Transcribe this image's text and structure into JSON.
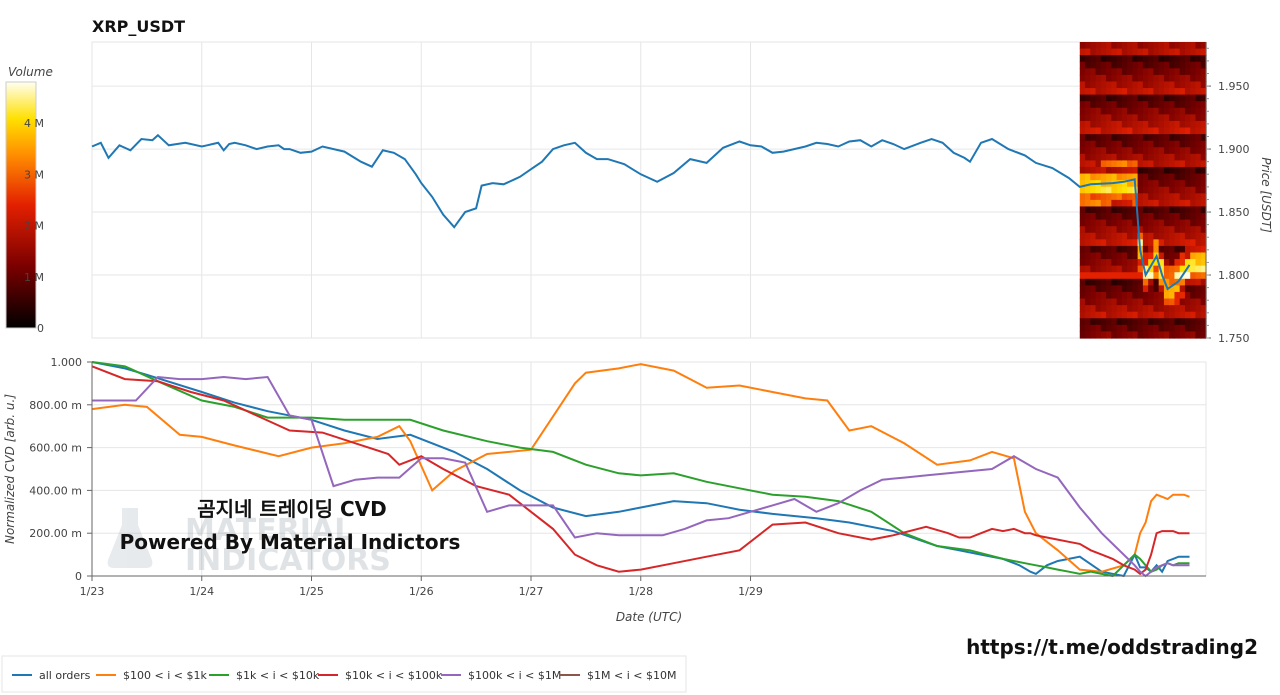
{
  "chart_data": [
    {
      "type": "line",
      "title": "XRP_USDT",
      "ylabel": "Price [USDT]",
      "ylim": [
        1.75,
        1.985
      ],
      "y_ticks": [
        "1.750",
        "1.800",
        "1.850",
        "1.900",
        "1.950"
      ],
      "heatmap_colorbar": {
        "label": "Volume",
        "ticks": [
          "0",
          "1 M",
          "2 M",
          "3 M",
          "4 M"
        ],
        "range": [
          0,
          4800000
        ]
      },
      "series": [
        {
          "color": "#1f77b4",
          "x": [
            0,
            0.08,
            0.15,
            0.25,
            0.35,
            0.45,
            0.55,
            0.6,
            0.7,
            0.85,
            1.0,
            1.05,
            1.1,
            1.15,
            1.2,
            1.25,
            1.3,
            1.4,
            1.5,
            1.6,
            1.7,
            1.75,
            1.8,
            1.9,
            2.0,
            2.1,
            2.3,
            2.45,
            2.55,
            2.65,
            2.75,
            2.85,
            2.95,
            3.0,
            3.1,
            3.2,
            3.3,
            3.4,
            3.5,
            3.55,
            3.65,
            3.75,
            3.85,
            3.9,
            4.0,
            4.1,
            4.2,
            4.3,
            4.4,
            4.5,
            4.6,
            4.7,
            4.85,
            5.0,
            5.15,
            5.3,
            5.45,
            5.6,
            5.75,
            5.9,
            6.0,
            6.1,
            6.2,
            6.3,
            6.5,
            6.6,
            6.7,
            6.8,
            6.9,
            7.0,
            7.1,
            7.2,
            7.3,
            7.4,
            7.55,
            7.65,
            7.75,
            7.85,
            7.95,
            8.0,
            8.1,
            8.2,
            8.35,
            8.5,
            8.6,
            8.75,
            8.9,
            9.0,
            9.1,
            9.3,
            9.4,
            9.5,
            9.55,
            9.6,
            9.7,
            9.75,
            9.8,
            9.9,
            10.0
          ],
          "y": [
            1.902,
            1.905,
            1.893,
            1.903,
            1.899,
            1.908,
            1.907,
            1.911,
            1.903,
            1.905,
            1.902,
            1.903,
            1.904,
            1.905,
            1.899,
            1.904,
            1.905,
            1.903,
            1.9,
            1.902,
            1.903,
            1.9,
            1.9,
            1.897,
            1.898,
            1.902,
            1.898,
            1.89,
            1.886,
            1.899,
            1.897,
            1.892,
            1.88,
            1.873,
            1.862,
            1.848,
            1.838,
            1.85,
            1.853,
            1.871,
            1.873,
            1.872,
            1.876,
            1.878,
            1.884,
            1.89,
            1.9,
            1.903,
            1.905,
            1.897,
            1.892,
            1.892,
            1.888,
            1.88,
            1.874,
            1.881,
            1.892,
            1.889,
            1.901,
            1.906,
            1.903,
            1.902,
            1.897,
            1.898,
            1.902,
            1.905,
            1.904,
            1.902,
            1.906,
            1.907,
            1.902,
            1.907,
            1.904,
            1.9,
            1.905,
            1.908,
            1.905,
            1.897,
            1.893,
            1.89,
            1.905,
            1.908,
            1.9,
            1.895,
            1.889,
            1.885,
            1.877,
            1.87,
            1.872,
            1.873,
            1.874,
            1.876,
            1.82,
            1.8,
            1.815,
            1.8,
            1.789,
            1.795,
            1.808
          ]
        }
      ]
    },
    {
      "type": "line",
      "xlabel": "Date (UTC)",
      "ylabel": "Normalized CVD [arb. u.]",
      "ylim": [
        0,
        1.0
      ],
      "x_ticks": [
        "1/23",
        "1/24",
        "1/25",
        "1/26",
        "1/27",
        "1/28",
        "1/29"
      ],
      "y_ticks": [
        "0",
        "200.00 m",
        "400.00 m",
        "600.00 m",
        "800.00 m",
        "1.000"
      ],
      "legend_position": "bottom",
      "series": [
        {
          "name": "all orders",
          "color": "#1f77b4",
          "x": [
            0,
            0.3,
            0.5,
            1.0,
            1.3,
            1.6,
            2.0,
            2.3,
            2.6,
            2.9,
            3.3,
            3.6,
            3.9,
            4.2,
            4.5,
            4.8,
            5.0,
            5.3,
            5.6,
            5.9,
            6.2,
            6.6,
            6.9,
            7.3,
            7.7,
            7.9,
            8.1,
            8.3,
            8.45,
            8.55,
            8.6,
            8.7,
            8.8,
            8.9,
            9.0,
            9.2,
            9.4,
            9.5,
            9.55,
            9.6,
            9.65,
            9.7,
            9.75,
            9.8,
            9.85,
            9.9,
            10.0
          ],
          "y": [
            1.0,
            0.97,
            0.94,
            0.86,
            0.81,
            0.77,
            0.73,
            0.68,
            0.64,
            0.66,
            0.58,
            0.5,
            0.4,
            0.32,
            0.28,
            0.3,
            0.32,
            0.35,
            0.34,
            0.31,
            0.29,
            0.27,
            0.25,
            0.21,
            0.14,
            0.12,
            0.1,
            0.08,
            0.05,
            0.02,
            0.01,
            0.05,
            0.07,
            0.08,
            0.09,
            0.02,
            0.0,
            0.1,
            0.04,
            0.04,
            0.02,
            0.05,
            0.02,
            0.07,
            0.08,
            0.09,
            0.09
          ]
        },
        {
          "name": "$100 < i < $1k",
          "color": "#ff7f0e",
          "x": [
            0,
            0.3,
            0.5,
            0.8,
            1.0,
            1.3,
            1.7,
            2.0,
            2.3,
            2.6,
            2.8,
            2.9,
            3.1,
            3.3,
            3.6,
            4.0,
            4.4,
            4.5,
            4.8,
            5.0,
            5.3,
            5.6,
            5.9,
            6.2,
            6.5,
            6.7,
            6.9,
            7.1,
            7.4,
            7.7,
            8.0,
            8.2,
            8.4,
            8.5,
            8.6,
            8.8,
            9.0,
            9.2,
            9.4,
            9.5,
            9.55,
            9.6,
            9.65,
            9.7,
            9.75,
            9.8,
            9.85,
            9.9,
            9.95,
            10.0
          ],
          "y": [
            0.78,
            0.8,
            0.79,
            0.66,
            0.65,
            0.61,
            0.56,
            0.6,
            0.62,
            0.65,
            0.7,
            0.63,
            0.4,
            0.49,
            0.57,
            0.59,
            0.9,
            0.95,
            0.97,
            0.99,
            0.96,
            0.88,
            0.89,
            0.86,
            0.83,
            0.82,
            0.68,
            0.7,
            0.62,
            0.52,
            0.54,
            0.58,
            0.55,
            0.3,
            0.2,
            0.12,
            0.03,
            0.02,
            0.05,
            0.1,
            0.2,
            0.25,
            0.35,
            0.38,
            0.37,
            0.36,
            0.38,
            0.38,
            0.38,
            0.37
          ]
        },
        {
          "name": "$1k < i < $10k",
          "color": "#2ca02c",
          "x": [
            0,
            0.3,
            0.6,
            1.0,
            1.3,
            1.6,
            2.0,
            2.3,
            2.6,
            2.9,
            3.2,
            3.6,
            3.9,
            4.2,
            4.5,
            4.8,
            5.0,
            5.3,
            5.6,
            5.9,
            6.2,
            6.5,
            6.8,
            7.1,
            7.4,
            7.7,
            8.0,
            8.3,
            8.5,
            8.6,
            8.7,
            8.8,
            8.9,
            9.0,
            9.1,
            9.2,
            9.3,
            9.4,
            9.5,
            9.55,
            9.6,
            9.65,
            9.7,
            9.75,
            9.8,
            9.85,
            9.9,
            10.0
          ],
          "y": [
            1.0,
            0.98,
            0.91,
            0.82,
            0.79,
            0.74,
            0.74,
            0.73,
            0.73,
            0.73,
            0.68,
            0.63,
            0.6,
            0.58,
            0.52,
            0.48,
            0.47,
            0.48,
            0.44,
            0.41,
            0.38,
            0.37,
            0.35,
            0.3,
            0.2,
            0.14,
            0.12,
            0.08,
            0.06,
            0.05,
            0.04,
            0.03,
            0.02,
            0.01,
            0.02,
            0.01,
            0.0,
            0.05,
            0.1,
            0.08,
            0.05,
            0.02,
            0.03,
            0.05,
            0.06,
            0.05,
            0.06,
            0.06
          ]
        },
        {
          "name": "$10k < i < $100k",
          "color": "#d62728",
          "x": [
            0,
            0.3,
            0.6,
            0.9,
            1.2,
            1.5,
            1.8,
            2.1,
            2.4,
            2.7,
            2.8,
            3.0,
            3.2,
            3.5,
            3.8,
            4.0,
            4.2,
            4.4,
            4.6,
            4.8,
            5.0,
            5.3,
            5.6,
            5.9,
            6.2,
            6.5,
            6.8,
            7.1,
            7.3,
            7.6,
            7.8,
            7.9,
            8.0,
            8.1,
            8.2,
            8.3,
            8.4,
            8.5,
            8.55,
            8.6,
            8.7,
            8.8,
            8.9,
            9.0,
            9.1,
            9.2,
            9.3,
            9.4,
            9.5,
            9.55,
            9.6,
            9.65,
            9.7,
            9.75,
            9.8,
            9.85,
            9.9,
            10.0
          ],
          "y": [
            0.98,
            0.92,
            0.91,
            0.86,
            0.82,
            0.75,
            0.68,
            0.67,
            0.62,
            0.57,
            0.52,
            0.56,
            0.5,
            0.42,
            0.38,
            0.3,
            0.22,
            0.1,
            0.05,
            0.02,
            0.03,
            0.06,
            0.09,
            0.12,
            0.24,
            0.25,
            0.2,
            0.17,
            0.19,
            0.23,
            0.2,
            0.18,
            0.18,
            0.2,
            0.22,
            0.21,
            0.22,
            0.2,
            0.2,
            0.19,
            0.18,
            0.17,
            0.16,
            0.15,
            0.12,
            0.1,
            0.08,
            0.05,
            0.03,
            0.01,
            0.03,
            0.1,
            0.2,
            0.21,
            0.21,
            0.21,
            0.2,
            0.2
          ]
        },
        {
          "name": "$100k < i < $1M",
          "color": "#9467bd",
          "x": [
            0,
            0.2,
            0.4,
            0.6,
            0.8,
            1.0,
            1.2,
            1.4,
            1.6,
            1.8,
            2.0,
            2.2,
            2.4,
            2.6,
            2.8,
            3.0,
            3.2,
            3.4,
            3.6,
            3.8,
            4.0,
            4.2,
            4.4,
            4.6,
            4.8,
            5.0,
            5.2,
            5.4,
            5.6,
            5.8,
            6.0,
            6.2,
            6.4,
            6.6,
            6.8,
            7.0,
            7.2,
            7.4,
            7.6,
            7.8,
            8.0,
            8.2,
            8.4,
            8.6,
            8.8,
            9.0,
            9.2,
            9.4,
            9.5,
            9.55,
            9.6,
            9.65,
            9.7,
            9.75,
            9.8,
            9.85,
            9.9,
            10.0
          ],
          "y": [
            0.82,
            0.82,
            0.82,
            0.93,
            0.92,
            0.92,
            0.93,
            0.92,
            0.93,
            0.75,
            0.73,
            0.42,
            0.45,
            0.46,
            0.46,
            0.55,
            0.55,
            0.53,
            0.3,
            0.33,
            0.33,
            0.33,
            0.18,
            0.2,
            0.19,
            0.19,
            0.19,
            0.22,
            0.26,
            0.27,
            0.3,
            0.33,
            0.36,
            0.3,
            0.34,
            0.4,
            0.45,
            0.46,
            0.47,
            0.48,
            0.49,
            0.5,
            0.56,
            0.5,
            0.46,
            0.32,
            0.2,
            0.1,
            0.05,
            0.02,
            0.0,
            0.02,
            0.04,
            0.05,
            0.06,
            0.05,
            0.05,
            0.05
          ]
        },
        {
          "name": "$1M < i < $10M",
          "color": "#8c564b",
          "x": [],
          "y": []
        }
      ]
    }
  ],
  "watermark": {
    "line1": "곰지네 트레이딩 CVD",
    "line2": "Powered By Material Indictors",
    "logo_line1": "MATERIAL",
    "logo_line2": "INDICATORS"
  },
  "link": "https://t.me/oddstrading2"
}
